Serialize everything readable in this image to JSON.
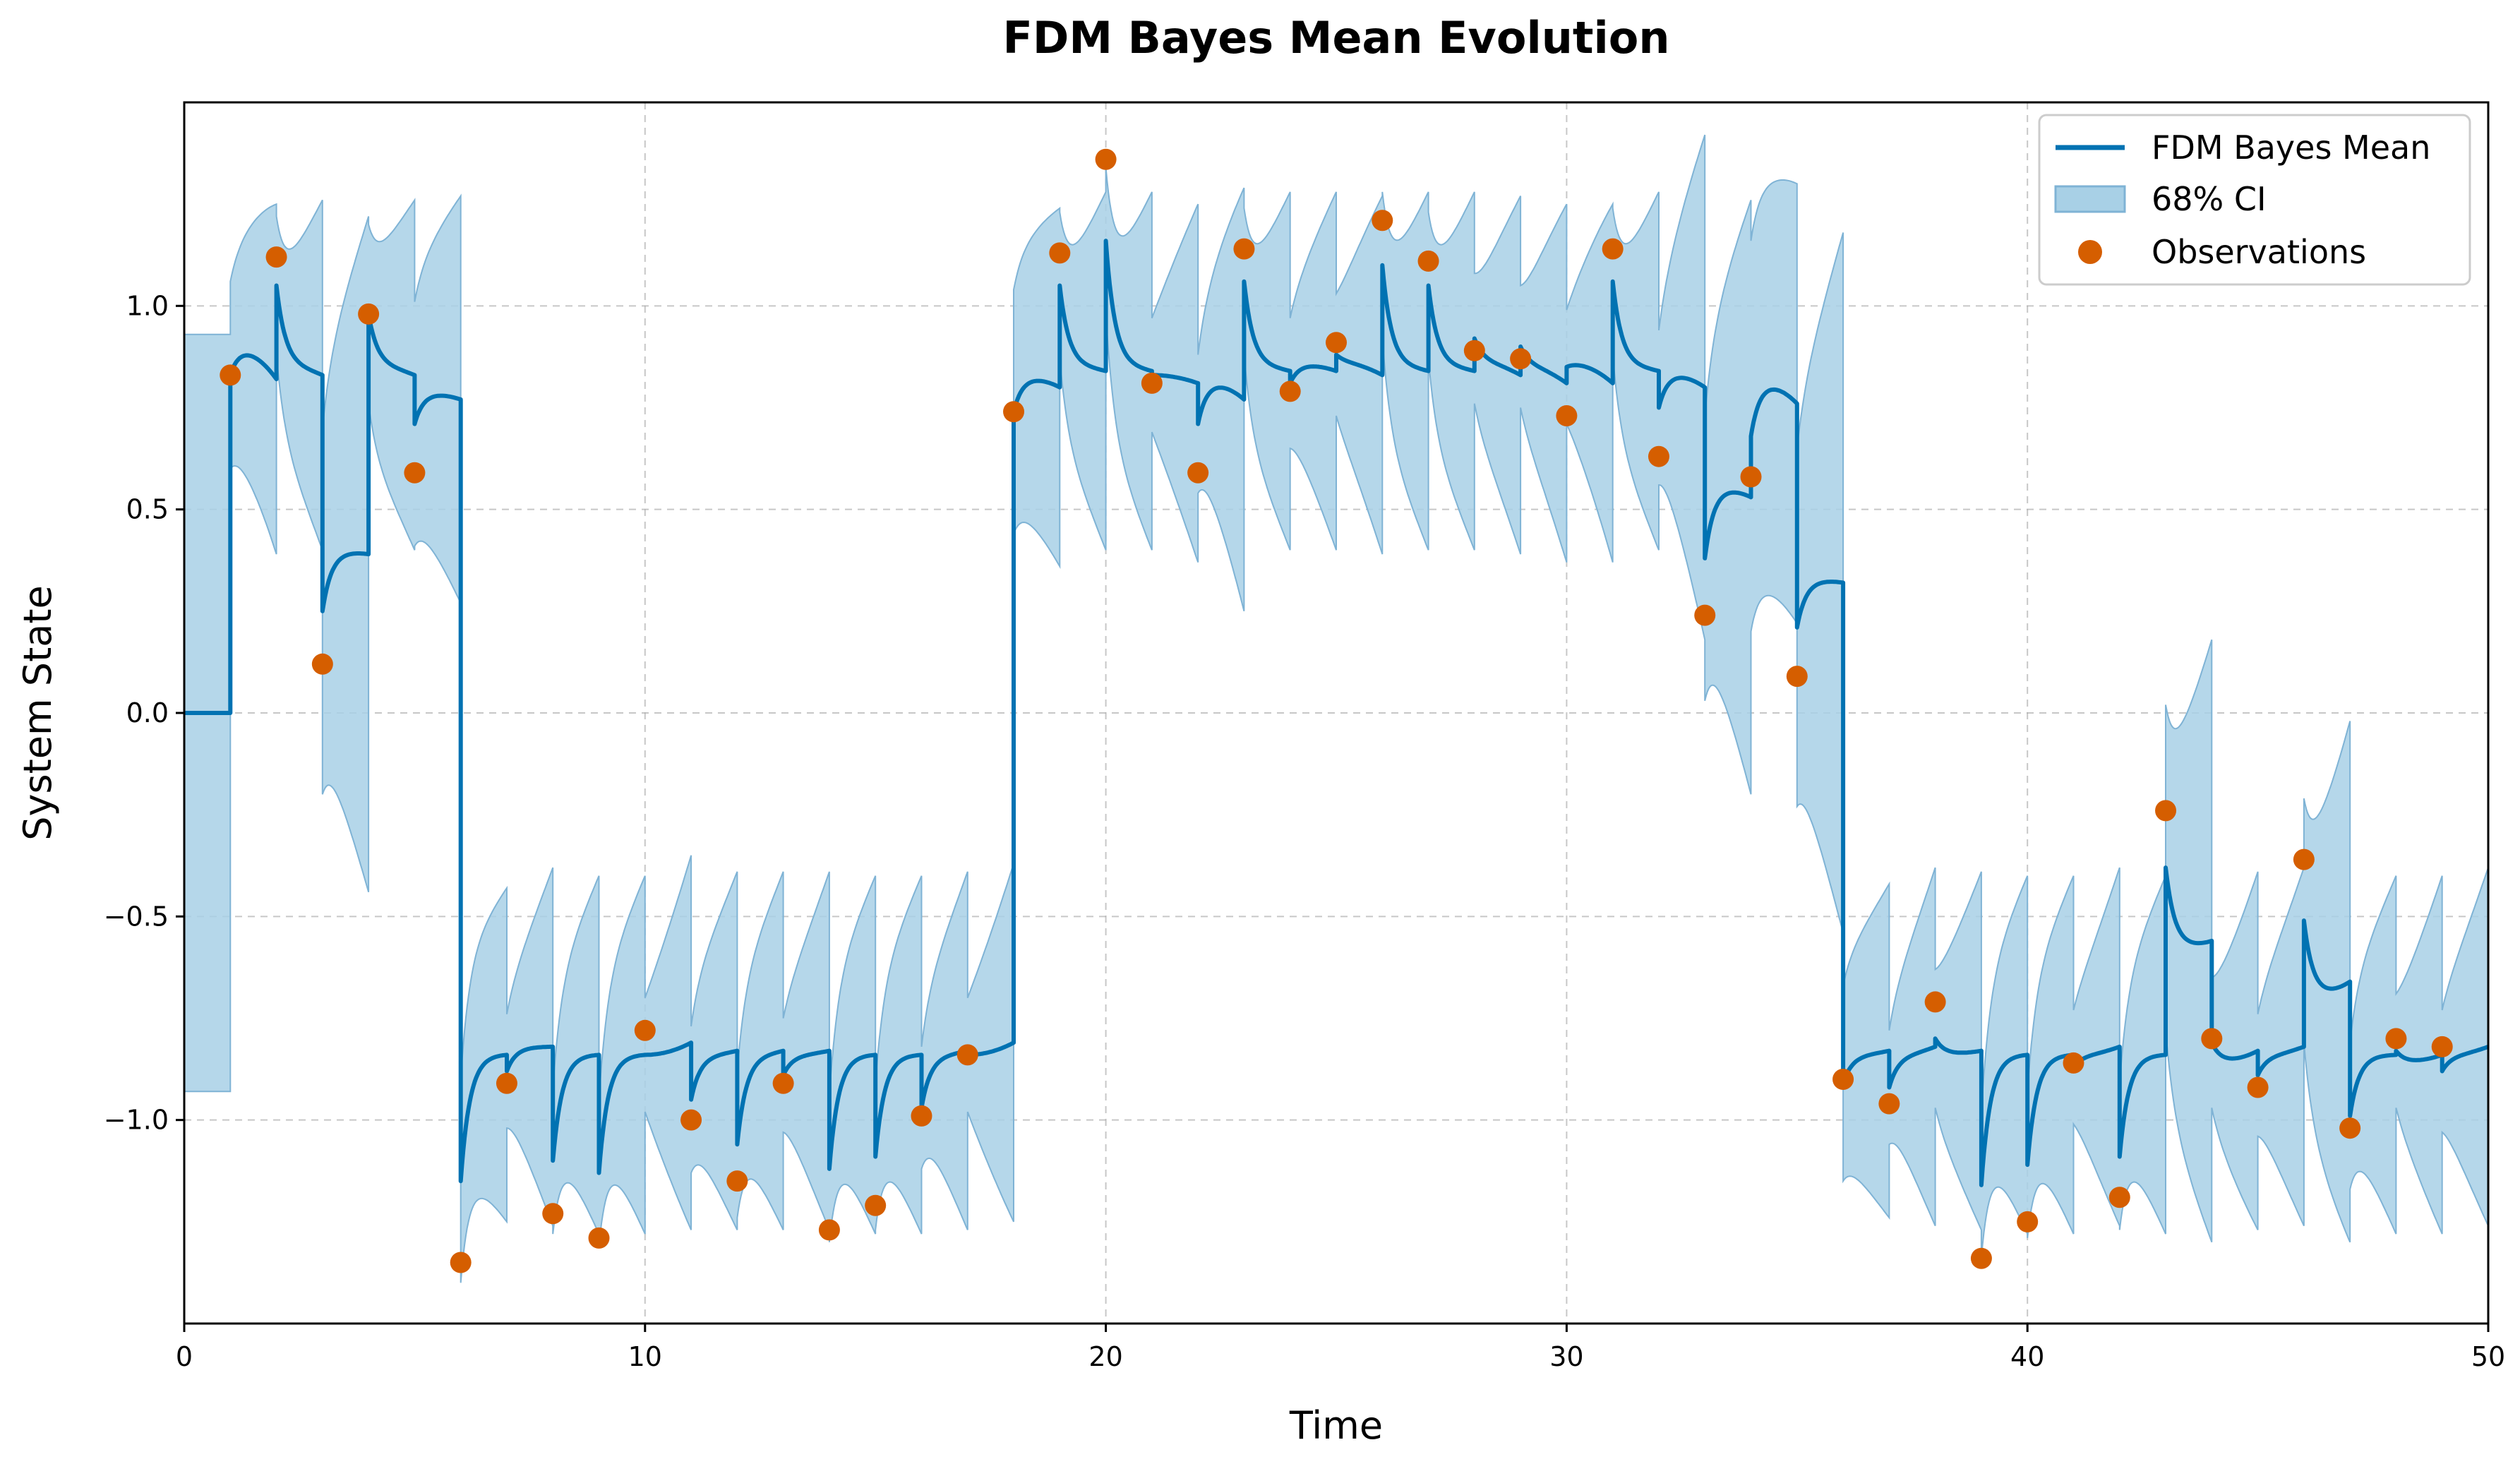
{
  "chart_data": {
    "type": "line",
    "title": "FDM Bayes Mean Evolution",
    "xlabel": "Time",
    "ylabel": "System State",
    "xlim": [
      0,
      50
    ],
    "ylim": [
      -1.5,
      1.5
    ],
    "xticks": [
      0,
      10,
      20,
      30,
      40,
      50
    ],
    "xtick_labels": [
      "0",
      "10",
      "20",
      "30",
      "40",
      "50"
    ],
    "yticks": [
      -1.0,
      -0.5,
      0.0,
      0.5,
      1.0
    ],
    "ytick_labels": [
      "−1.0",
      "−0.5",
      "0.0",
      "0.5",
      "1.0"
    ],
    "grid": true,
    "legend_position": "top-right",
    "colors": {
      "mean": "#0072b2",
      "ci": "#a8d0e6",
      "ci_edge": "#7fb3d5",
      "obs": "#d55e00"
    },
    "series": [
      {
        "name": "FDM Bayes Mean",
        "kind": "line"
      },
      {
        "name": "68% CI",
        "kind": "band"
      },
      {
        "name": "Observations",
        "kind": "scatter"
      }
    ],
    "observations": {
      "x": [
        1,
        2,
        3,
        4,
        5,
        6,
        7,
        8,
        9,
        10,
        11,
        12,
        13,
        14,
        15,
        16,
        17,
        18,
        19,
        20,
        21,
        22,
        23,
        24,
        25,
        26,
        27,
        28,
        29,
        30,
        31,
        32,
        33,
        34,
        35,
        36,
        37,
        38,
        39,
        40,
        41,
        42,
        43,
        44,
        45,
        46,
        47,
        48,
        49
      ],
      "y": [
        0.83,
        1.12,
        0.12,
        0.98,
        0.59,
        -1.35,
        -0.91,
        -1.23,
        -1.29,
        -0.78,
        -1.0,
        -1.15,
        -0.91,
        -1.27,
        -1.21,
        -0.99,
        -0.84,
        0.74,
        1.13,
        1.36,
        0.81,
        0.59,
        1.14,
        0.79,
        0.91,
        1.21,
        1.11,
        0.89,
        0.87,
        0.73,
        1.14,
        0.63,
        0.24,
        0.58,
        0.09,
        -0.9,
        -0.96,
        -0.71,
        -1.34,
        -1.25,
        -0.86,
        -1.19,
        -0.24,
        -0.8,
        -0.92,
        -0.36,
        -1.02,
        -0.8,
        -0.82
      ]
    },
    "mean_segments": [
      {
        "x0": 0,
        "x1": 1,
        "start": 0.0,
        "end": 0.0,
        "eq": 0.0,
        "ci0": 0.93,
        "ci1": 0.93
      },
      {
        "x0": 1,
        "x1": 2,
        "start": 0.83,
        "end": 0.82,
        "eq": 0.9,
        "ci0": 0.23,
        "ci1": 0.43
      },
      {
        "x0": 2,
        "x1": 3,
        "start": 1.05,
        "end": 0.83,
        "eq": 0.85,
        "ci0": 0.17,
        "ci1": 0.43
      },
      {
        "x0": 3,
        "x1": 4,
        "start": 0.25,
        "end": 0.39,
        "eq": 0.4,
        "ci0": 0.45,
        "ci1": 0.83
      },
      {
        "x0": 4,
        "x1": 5,
        "start": 0.98,
        "end": 0.83,
        "eq": 0.85,
        "ci0": 0.22,
        "ci1": 0.43
      },
      {
        "x0": 5,
        "x1": 6,
        "start": 0.71,
        "end": 0.77,
        "eq": 0.79,
        "ci0": 0.3,
        "ci1": 0.5
      },
      {
        "x0": 6,
        "x1": 7,
        "start": -1.15,
        "end": -0.84,
        "eq": -0.84,
        "ci0": 0.25,
        "ci1": 0.41
      },
      {
        "x0": 7,
        "x1": 8,
        "start": -0.88,
        "end": -0.82,
        "eq": -0.82,
        "ci0": 0.14,
        "ci1": 0.44
      },
      {
        "x0": 8,
        "x1": 9,
        "start": -1.1,
        "end": -0.84,
        "eq": -0.84,
        "ci0": 0.18,
        "ci1": 0.44
      },
      {
        "x0": 9,
        "x1": 10,
        "start": -1.13,
        "end": -0.84,
        "eq": -0.84,
        "ci0": 0.18,
        "ci1": 0.44
      },
      {
        "x0": 10,
        "x1": 11,
        "start": -0.84,
        "end": -0.81,
        "eq": -0.84,
        "ci0": 0.14,
        "ci1": 0.46
      },
      {
        "x0": 11,
        "x1": 12,
        "start": -0.95,
        "end": -0.83,
        "eq": -0.84,
        "ci0": 0.18,
        "ci1": 0.44
      },
      {
        "x0": 12,
        "x1": 13,
        "start": -1.06,
        "end": -0.83,
        "eq": -0.84,
        "ci0": 0.18,
        "ci1": 0.44
      },
      {
        "x0": 13,
        "x1": 14,
        "start": -0.89,
        "end": -0.83,
        "eq": -0.84,
        "ci0": 0.14,
        "ci1": 0.44
      },
      {
        "x0": 14,
        "x1": 15,
        "start": -1.12,
        "end": -0.84,
        "eq": -0.84,
        "ci0": 0.18,
        "ci1": 0.44
      },
      {
        "x0": 15,
        "x1": 16,
        "start": -1.09,
        "end": -0.84,
        "eq": -0.84,
        "ci0": 0.18,
        "ci1": 0.44
      },
      {
        "x0": 16,
        "x1": 17,
        "start": -0.97,
        "end": -0.83,
        "eq": -0.84,
        "ci0": 0.15,
        "ci1": 0.44
      },
      {
        "x0": 17,
        "x1": 18,
        "start": -0.84,
        "end": -0.81,
        "eq": -0.84,
        "ci0": 0.14,
        "ci1": 0.44
      },
      {
        "x0": 18,
        "x1": 19,
        "start": 0.74,
        "end": 0.8,
        "eq": 0.83,
        "ci0": 0.3,
        "ci1": 0.44
      },
      {
        "x0": 19,
        "x1": 20,
        "start": 1.05,
        "end": 0.84,
        "eq": 0.85,
        "ci0": 0.18,
        "ci1": 0.44
      },
      {
        "x0": 20,
        "x1": 21,
        "start": 1.16,
        "end": 0.84,
        "eq": 0.85,
        "ci0": 0.18,
        "ci1": 0.44
      },
      {
        "x0": 21,
        "x1": 22,
        "start": 0.83,
        "end": 0.81,
        "eq": 0.83,
        "ci0": 0.14,
        "ci1": 0.44
      },
      {
        "x0": 22,
        "x1": 23,
        "start": 0.71,
        "end": 0.77,
        "eq": 0.82,
        "ci0": 0.17,
        "ci1": 0.52
      },
      {
        "x0": 23,
        "x1": 24,
        "start": 1.06,
        "end": 0.84,
        "eq": 0.85,
        "ci0": 0.18,
        "ci1": 0.44
      },
      {
        "x0": 24,
        "x1": 25,
        "start": 0.81,
        "end": 0.84,
        "eq": 0.86,
        "ci0": 0.16,
        "ci1": 0.44
      },
      {
        "x0": 25,
        "x1": 26,
        "start": 0.88,
        "end": 0.83,
        "eq": 0.86,
        "ci0": 0.15,
        "ci1": 0.44
      },
      {
        "x0": 26,
        "x1": 27,
        "start": 1.1,
        "end": 0.84,
        "eq": 0.85,
        "ci0": 0.18,
        "ci1": 0.44
      },
      {
        "x0": 27,
        "x1": 28,
        "start": 1.05,
        "end": 0.84,
        "eq": 0.85,
        "ci0": 0.18,
        "ci1": 0.44
      },
      {
        "x0": 28,
        "x1": 29,
        "start": 0.92,
        "end": 0.83,
        "eq": 0.86,
        "ci0": 0.16,
        "ci1": 0.44
      },
      {
        "x0": 29,
        "x1": 30,
        "start": 0.9,
        "end": 0.81,
        "eq": 0.85,
        "ci0": 0.15,
        "ci1": 0.44
      },
      {
        "x0": 30,
        "x1": 31,
        "start": 0.85,
        "end": 0.81,
        "eq": 0.86,
        "ci0": 0.14,
        "ci1": 0.44
      },
      {
        "x0": 31,
        "x1": 32,
        "start": 1.06,
        "end": 0.84,
        "eq": 0.85,
        "ci0": 0.18,
        "ci1": 0.44
      },
      {
        "x0": 32,
        "x1": 33,
        "start": 0.75,
        "end": 0.8,
        "eq": 0.84,
        "ci0": 0.19,
        "ci1": 0.62
      },
      {
        "x0": 33,
        "x1": 34,
        "start": 0.38,
        "end": 0.53,
        "eq": 0.56,
        "ci0": 0.35,
        "ci1": 0.73
      },
      {
        "x0": 34,
        "x1": 35,
        "start": 0.68,
        "end": 0.76,
        "eq": 0.82,
        "ci0": 0.48,
        "ci1": 0.54
      },
      {
        "x0": 35,
        "x1": 36,
        "start": 0.21,
        "end": 0.32,
        "eq": 0.33,
        "ci0": 0.44,
        "ci1": 0.86
      },
      {
        "x0": 36,
        "x1": 37,
        "start": -0.91,
        "end": -0.83,
        "eq": -0.84,
        "ci0": 0.24,
        "ci1": 0.41
      },
      {
        "x0": 37,
        "x1": 38,
        "start": -0.92,
        "end": -0.82,
        "eq": -0.84,
        "ci0": 0.14,
        "ci1": 0.44
      },
      {
        "x0": 38,
        "x1": 39,
        "start": -0.8,
        "end": -0.83,
        "eq": -0.84,
        "ci0": 0.17,
        "ci1": 0.44
      },
      {
        "x0": 39,
        "x1": 40,
        "start": -1.16,
        "end": -0.84,
        "eq": -0.84,
        "ci0": 0.18,
        "ci1": 0.44
      },
      {
        "x0": 40,
        "x1": 41,
        "start": -1.11,
        "end": -0.84,
        "eq": -0.84,
        "ci0": 0.18,
        "ci1": 0.44
      },
      {
        "x0": 41,
        "x1": 42,
        "start": -0.87,
        "end": -0.82,
        "eq": -0.84,
        "ci0": 0.14,
        "ci1": 0.44
      },
      {
        "x0": 42,
        "x1": 43,
        "start": -1.09,
        "end": -0.84,
        "eq": -0.84,
        "ci0": 0.18,
        "ci1": 0.44
      },
      {
        "x0": 43,
        "x1": 44,
        "start": -0.38,
        "end": -0.56,
        "eq": -0.58,
        "ci0": 0.4,
        "ci1": 0.74
      },
      {
        "x0": 44,
        "x1": 45,
        "start": -0.81,
        "end": -0.83,
        "eq": -0.86,
        "ci0": 0.16,
        "ci1": 0.44
      },
      {
        "x0": 45,
        "x1": 46,
        "start": -0.89,
        "end": -0.82,
        "eq": -0.84,
        "ci0": 0.15,
        "ci1": 0.44
      },
      {
        "x0": 46,
        "x1": 47,
        "start": -0.51,
        "end": -0.66,
        "eq": -0.7,
        "ci0": 0.3,
        "ci1": 0.64
      },
      {
        "x0": 47,
        "x1": 48,
        "start": -0.99,
        "end": -0.84,
        "eq": -0.84,
        "ci0": 0.18,
        "ci1": 0.44
      },
      {
        "x0": 48,
        "x1": 49,
        "start": -0.83,
        "end": -0.84,
        "eq": -0.86,
        "ci0": 0.14,
        "ci1": 0.44
      },
      {
        "x0": 49,
        "x1": 50,
        "start": -0.88,
        "end": -0.82,
        "eq": -0.84,
        "ci0": 0.15,
        "ci1": 0.44
      }
    ]
  }
}
